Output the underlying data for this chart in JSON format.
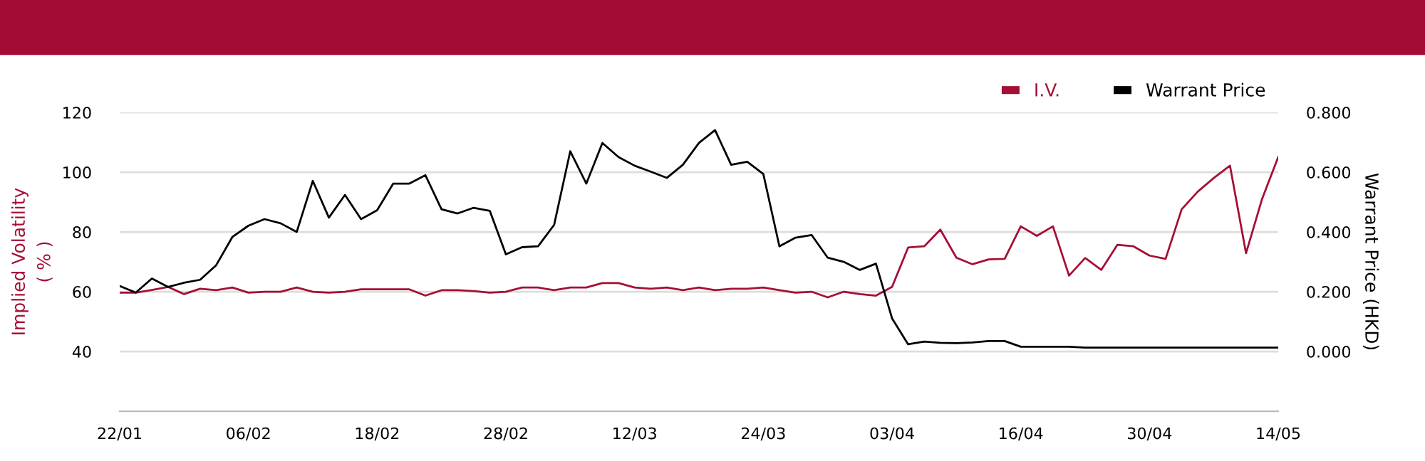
{
  "chart_data": {
    "type": "line",
    "categories": [
      "22/01",
      null,
      null,
      null,
      null,
      null,
      null,
      null,
      "06/02",
      null,
      null,
      null,
      null,
      null,
      null,
      null,
      "18/02",
      null,
      null,
      null,
      null,
      null,
      null,
      null,
      "28/02",
      null,
      null,
      null,
      null,
      null,
      null,
      null,
      "12/03",
      null,
      null,
      null,
      null,
      null,
      null,
      null,
      "24/03",
      null,
      null,
      null,
      null,
      null,
      null,
      null,
      "03/04",
      null,
      null,
      null,
      null,
      null,
      null,
      null,
      "16/04",
      null,
      null,
      null,
      null,
      null,
      null,
      null,
      "30/04",
      null,
      null,
      null,
      null,
      null,
      null,
      null,
      "14/05"
    ],
    "series": [
      {
        "name": "I.V.",
        "color": "#a50f35",
        "values": [
          59.7,
          59.7,
          60.6,
          61.6,
          59.2,
          61.0,
          60.5,
          61.4,
          59.7,
          60,
          60,
          61.4,
          60,
          59.7,
          60,
          60.8,
          60.8,
          60.8,
          60.8,
          58.7,
          60.5,
          60.5,
          60.2,
          59.7,
          60,
          61.4,
          61.4,
          60.5,
          61.4,
          61.4,
          62.9,
          62.9,
          61.4,
          61,
          61.4,
          60.5,
          61.4,
          60.5,
          61,
          61,
          61.4,
          60.5,
          59.7,
          60,
          58.1,
          60,
          59.2,
          58.7,
          61.6,
          74.8,
          75.2,
          80.8,
          71.4,
          69.2,
          70.8,
          71,
          81.9,
          78.7,
          81.9,
          65.4,
          71.3,
          67.3,
          75.7,
          75.2,
          72.1,
          71,
          87.6,
          93.5,
          98.1,
          102.2,
          72.9,
          91.1,
          105.1
        ]
      },
      {
        "name": "Warrant Price",
        "color": "#000000",
        "axis": "y2",
        "values": [
          0.219,
          0.197,
          0.244,
          0.216,
          0.23,
          0.24,
          0.289,
          0.383,
          0.421,
          0.443,
          0.429,
          0.4,
          0.571,
          0.448,
          0.524,
          0.443,
          0.473,
          0.562,
          0.562,
          0.59,
          0.476,
          0.462,
          0.481,
          0.471,
          0.325,
          0.349,
          0.352,
          0.424,
          0.67,
          0.562,
          0.698,
          0.651,
          0.622,
          0.602,
          0.581,
          0.625,
          0.698,
          0.741,
          0.625,
          0.635,
          0.594,
          0.352,
          0.381,
          0.39,
          0.314,
          0.3,
          0.273,
          0.294,
          0.111,
          0.024,
          0.033,
          0.029,
          0.028,
          0.03,
          0.035,
          0.035,
          0.016,
          0.016,
          0.016,
          0.016,
          0.013,
          0.013,
          0.013,
          0.013,
          0.013,
          0.013,
          0.013,
          0.013,
          0.013,
          0.013,
          0.013,
          0.013,
          0.013
        ]
      }
    ],
    "ylabel": "Implied Volatility\n( % )",
    "y2label": "Warrant Price (HKD)",
    "ylim": [
      20,
      120
    ],
    "yticks": [
      40,
      60,
      80,
      100,
      120
    ],
    "y2lim": [
      -0.2,
      0.8
    ],
    "y2ticks": [
      {
        "value": 0,
        "label": "0.000"
      },
      {
        "value": 0.2,
        "label": "0.200"
      },
      {
        "value": 0.4,
        "label": "0.400"
      },
      {
        "value": 0.6,
        "label": "0.600"
      },
      {
        "value": 0.8,
        "label": "0.800"
      }
    ],
    "grid": "y",
    "legend": "top right"
  }
}
